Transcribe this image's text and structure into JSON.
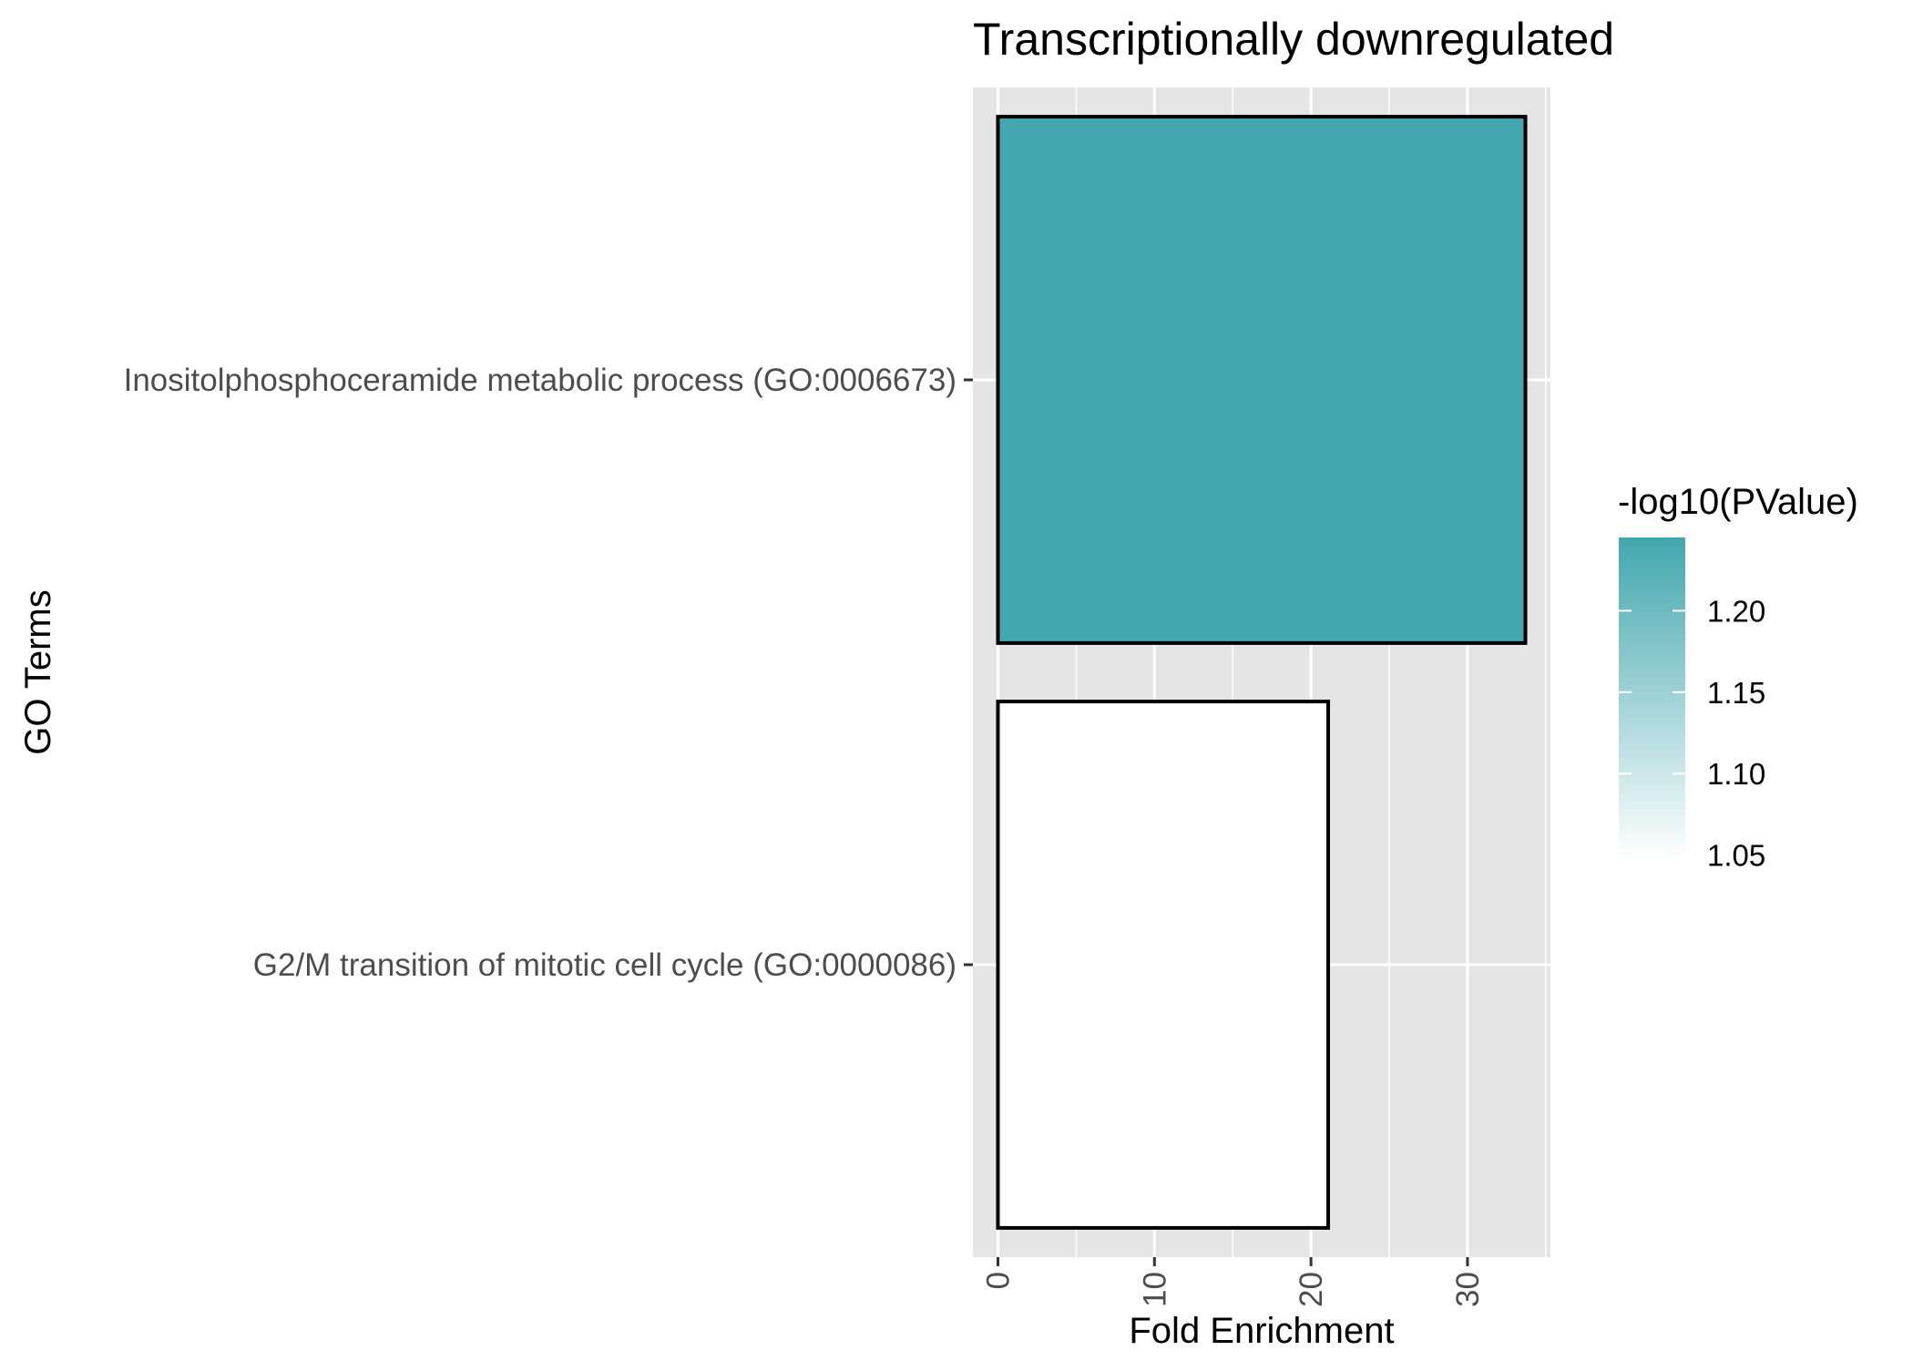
{
  "chart_data": {
    "type": "bar",
    "orientation": "horizontal",
    "title": "Transcriptionally downregulated",
    "xlabel": "Fold Enrichment",
    "ylabel": "GO Terms",
    "categories": [
      "Inositolphosphoceramide metabolic process (GO:0006673)",
      "G2/M transition of mitotic cell cycle (GO:0000086)"
    ],
    "values": [
      33.7,
      21.1
    ],
    "color_values": [
      1.245,
      1.047
    ],
    "x_ticks": [
      0,
      10,
      20,
      30
    ],
    "xlim": [
      -1.6,
      35.3
    ],
    "grid": true,
    "legend": {
      "title": "-log10(PValue)",
      "position": "right",
      "ticks": [
        1.05,
        1.1,
        1.15,
        1.2
      ],
      "range": [
        1.047,
        1.245
      ],
      "low_color": "#ffffff",
      "high_color": "#42a7ae"
    },
    "colors": {
      "panel_background": "#e5e5e5",
      "grid": "#ffffff",
      "bar_outline": "#000000",
      "axis_text": "#4d4d4d",
      "title_text": "#000000"
    }
  }
}
